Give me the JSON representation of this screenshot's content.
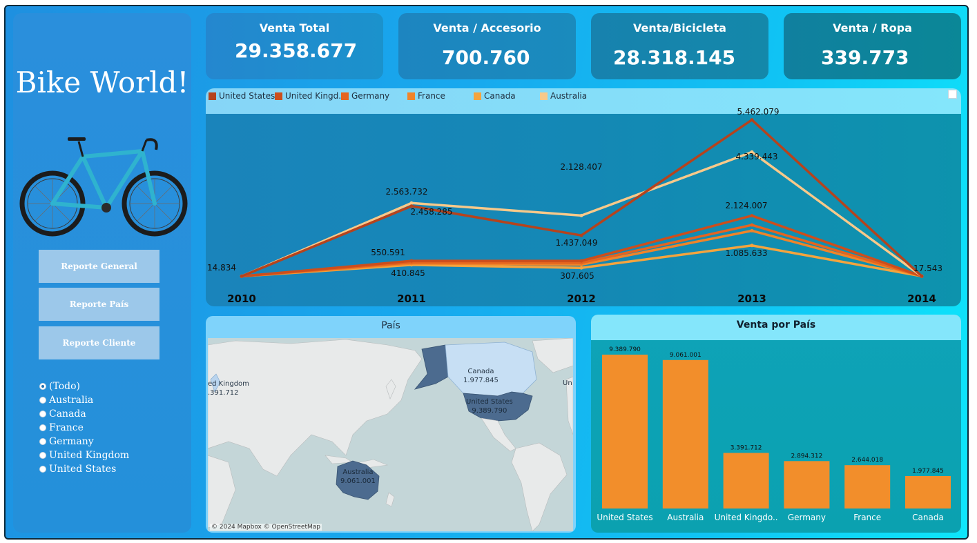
{
  "sidebar": {
    "title": "Bike World!",
    "nav_buttons": [
      "Reporte General",
      "Reporte País",
      "Reporte Cliente"
    ],
    "country_filter": {
      "options": [
        "(Todo)",
        "Australia",
        "Canada",
        "France",
        "Germany",
        "United Kingdom",
        "United States"
      ],
      "selected": "(Todo)"
    }
  },
  "kpis": [
    {
      "label": "Venta Total",
      "value": "29.358.677"
    },
    {
      "label": "Venta / Accesorio",
      "value": "700.760"
    },
    {
      "label": "Venta/Bicicleta",
      "value": "28.318.145"
    },
    {
      "label": "Venta / Ropa",
      "value": "339.773"
    }
  ],
  "line_panel": {
    "legend": [
      {
        "name": "United States",
        "color": "#b5431d"
      },
      {
        "name": "United Kingd...",
        "color": "#cc4e1c"
      },
      {
        "name": "Germany",
        "color": "#e5641f"
      },
      {
        "name": "France",
        "color": "#f08429"
      },
      {
        "name": "Canada",
        "color": "#f4a43e"
      },
      {
        "name": "Australia",
        "color": "#f8c98a"
      }
    ],
    "data_labels": [
      "14.834",
      "2.563.732",
      "2.458.285",
      "550.591",
      "410.845",
      "2.128.407",
      "1.437.049",
      "307.605",
      "5.462.079",
      "4.339.443",
      "2.124.007",
      "1.085.633",
      "17.543"
    ]
  },
  "map_panel": {
    "title": "País",
    "labels": [
      {
        "name": "Canada",
        "value": "1.977.845"
      },
      {
        "name": "United States",
        "value": "9.389.790"
      },
      {
        "name": "Australia",
        "value": "9.061.001"
      },
      {
        "name": "ed Kingdom",
        "value": ".391.712"
      },
      {
        "name": "Un",
        "value": ""
      }
    ],
    "credit": "© 2024 Mapbox © OpenStreetMap"
  },
  "bar_panel": {
    "title": "Venta por País"
  },
  "chart_data": [
    {
      "type": "line",
      "title": "",
      "x": [
        "2010",
        "2011",
        "2012",
        "2013",
        "2014"
      ],
      "series": [
        {
          "name": "United States",
          "values": [
            14834,
            2458285,
            1437049,
            5462079,
            17543
          ]
        },
        {
          "name": "United Kingdom",
          "values": [
            14834,
            550591,
            550000,
            2124007,
            17543
          ]
        },
        {
          "name": "Germany",
          "values": [
            14834,
            500000,
            480000,
            1800000,
            17543
          ]
        },
        {
          "name": "France",
          "values": [
            14834,
            460000,
            420000,
            1600000,
            17543
          ]
        },
        {
          "name": "Canada",
          "values": [
            14834,
            410845,
            307605,
            1085633,
            17543
          ]
        },
        {
          "name": "Australia",
          "values": [
            14834,
            2563732,
            2128407,
            4339443,
            17543
          ]
        }
      ],
      "ylim": [
        0,
        5600000
      ],
      "legend": "top-left",
      "grid": false
    },
    {
      "type": "bar",
      "title": "Venta por País",
      "categories": [
        "United States",
        "Australia",
        "United Kingdo..",
        "Germany",
        "France",
        "Canada"
      ],
      "values": [
        9389790,
        9061001,
        3391712,
        2894312,
        2644018,
        1977845
      ],
      "value_labels": [
        "9.389.790",
        "9.061.001",
        "3.391.712",
        "2.894.312",
        "2.644.018",
        "1.977.845"
      ],
      "bar_color": "#f28e2b",
      "ylim": [
        0,
        9389790
      ]
    }
  ]
}
